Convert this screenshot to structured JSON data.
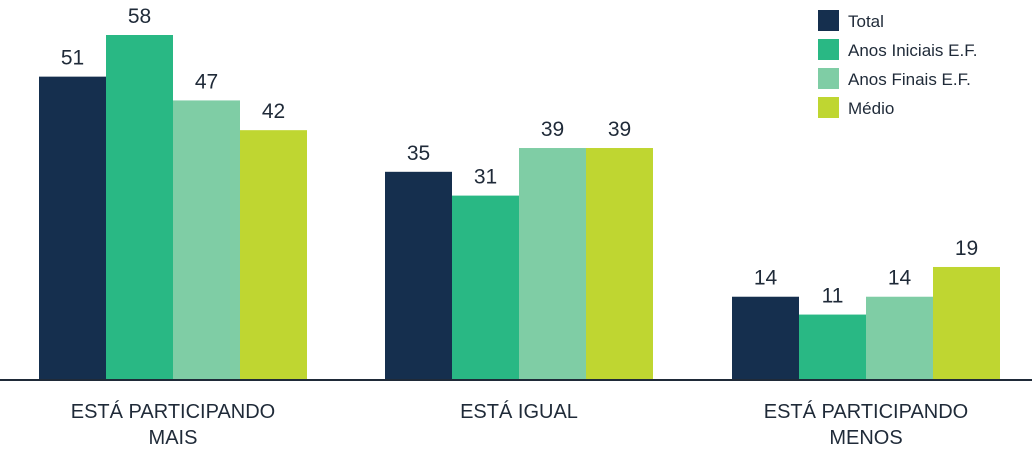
{
  "chart_data": {
    "type": "bar",
    "categories": [
      [
        "ESTÁ PARTICIPANDO",
        "MAIS"
      ],
      [
        "ESTÁ IGUAL"
      ],
      [
        "ESTÁ PARTICIPANDO",
        "MENOS"
      ]
    ],
    "series": [
      {
        "name": "Total",
        "color": "#152f4e",
        "values": [
          51,
          35,
          14
        ]
      },
      {
        "name": "Anos Iniciais E.F.",
        "color": "#29b884",
        "values": [
          58,
          31,
          11
        ]
      },
      {
        "name": "Anos Finais E.F.",
        "color": "#7fcda5",
        "values": [
          47,
          39,
          14
        ]
      },
      {
        "name": "Médio",
        "color": "#bfd631",
        "values": [
          42,
          39,
          19
        ]
      }
    ],
    "ylim": [
      0,
      65
    ],
    "grid": false,
    "legend_position": "top-right",
    "axis_color": "#1f2a38"
  }
}
